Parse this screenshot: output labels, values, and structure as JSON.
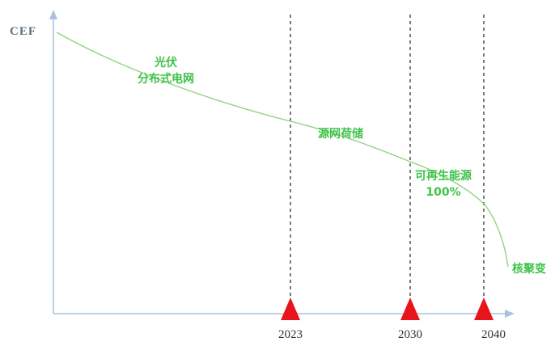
{
  "axis": {
    "y_label": "CEF"
  },
  "years": [
    "2023",
    "2030",
    "2040"
  ],
  "stages": [
    {
      "line1": "光伏",
      "line2": "分布式电网"
    },
    {
      "line1": "源网荷储",
      "line2": ""
    },
    {
      "line1": "可再生能源",
      "line2": "100%"
    },
    {
      "line1": "核聚变",
      "line2": ""
    }
  ],
  "colors": {
    "axis": "#a9c3dd",
    "curve": "#8fd47e",
    "label": "#3fc24a",
    "marker": "#e8141c",
    "dashed": "#222222"
  }
}
